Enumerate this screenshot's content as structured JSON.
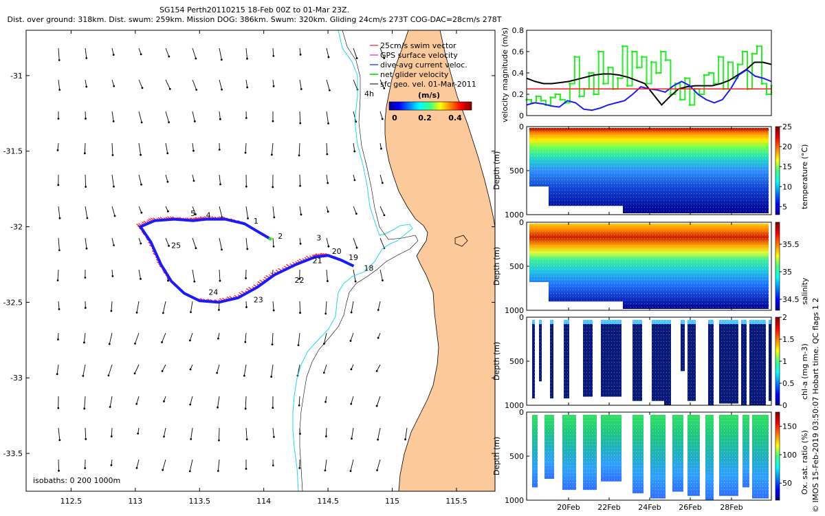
{
  "title": {
    "line1": "SG154 Perth20110215 18-Feb 00Z to 01-Mar 23Z.",
    "line2": "Dist. over ground: 318km. Dist. swum: 259km. Mission DOG: 386km. Swum: 320km. Gliding 24cm/s 273T COG-DAC=28cm/s 278T"
  },
  "colors": {
    "land": "#fbc99a",
    "isobath": "#22d8ee",
    "red": "#ff1a1a",
    "blue": "#1a1aff",
    "green": "#22ee22",
    "black": "#000000"
  },
  "chart_data": [
    {
      "type": "scatter",
      "name": "map",
      "xlabel": "",
      "ylabel": "",
      "xlim": [
        112.15,
        115.8
      ],
      "ylim": [
        -33.75,
        -30.7
      ],
      "xticks": [
        "112.5",
        "113",
        "113.5",
        "114",
        "114.5",
        "115",
        "115.5"
      ],
      "xtick_values": [
        112.5,
        113,
        113.5,
        114,
        114.5,
        115,
        115.5
      ],
      "yticks": [
        "-31",
        "-31.5",
        "-32",
        "-32.5",
        "-33",
        "-33.5"
      ],
      "ytick_values": [
        -31,
        -31.5,
        -32,
        -32.5,
        -33,
        -33.5
      ],
      "legend": [
        "25cm/s swim vector",
        "GPS surface velocity",
        "dive-avg current veloc.",
        "net glider velocity",
        "sfc geo. vel. 01-Mar-2011"
      ],
      "legend_note": "4h",
      "colorbar": {
        "label": "(m/s)",
        "ticks": [
          "0",
          "0.2",
          "0.4"
        ],
        "range": [
          0,
          0.5
        ]
      },
      "isobath_note": "isobaths: 0   200   1000m",
      "track": [
        [
          114.7,
          -32.26
        ],
        [
          114.6,
          -32.22
        ],
        [
          114.5,
          -32.19
        ],
        [
          114.4,
          -32.2
        ],
        [
          114.25,
          -32.25
        ],
        [
          114.08,
          -32.32
        ],
        [
          113.95,
          -32.4
        ],
        [
          113.8,
          -32.47
        ],
        [
          113.65,
          -32.5
        ],
        [
          113.5,
          -32.49
        ],
        [
          113.38,
          -32.44
        ],
        [
          113.28,
          -32.36
        ],
        [
          113.2,
          -32.25
        ],
        [
          113.12,
          -32.1
        ],
        [
          113.04,
          -32.0
        ],
        [
          113.15,
          -31.96
        ],
        [
          113.3,
          -31.95
        ],
        [
          113.45,
          -31.96
        ],
        [
          113.55,
          -31.95
        ],
        [
          113.7,
          -31.95
        ],
        [
          113.85,
          -31.98
        ],
        [
          113.95,
          -32.03
        ],
        [
          114.05,
          -32.08
        ]
      ],
      "day_labels": [
        {
          "t": "18",
          "lon": 114.78,
          "lat": -32.29
        },
        {
          "t": "19",
          "lon": 114.66,
          "lat": -32.22
        },
        {
          "t": "20",
          "lon": 114.53,
          "lat": -32.18
        },
        {
          "t": "21",
          "lon": 114.38,
          "lat": -32.24
        },
        {
          "t": "22",
          "lon": 114.24,
          "lat": -32.37
        },
        {
          "t": "23",
          "lon": 113.92,
          "lat": -32.5
        },
        {
          "t": "24",
          "lon": 113.57,
          "lat": -32.45
        },
        {
          "t": "25",
          "lon": 113.28,
          "lat": -32.14
        },
        {
          "t": "1",
          "lon": 113.92,
          "lat": -31.98
        },
        {
          "t": "2",
          "lon": 114.11,
          "lat": -32.08
        },
        {
          "t": "3",
          "lon": 114.41,
          "lat": -32.09
        },
        {
          "t": "4",
          "lon": 113.55,
          "lat": -31.94
        },
        {
          "t": "5",
          "lon": 113.43,
          "lat": -31.93
        }
      ]
    },
    {
      "type": "line",
      "name": "velocity",
      "ylabel": "velocity magnitude (m/s)",
      "ylim": [
        0,
        0.8
      ],
      "yticks": [
        "0",
        "0.2",
        "0.4",
        "0.6",
        "0.8"
      ],
      "ytick_values": [
        0,
        0.2,
        0.4,
        0.6,
        0.8
      ],
      "series": [
        {
          "name": "net glider velocity",
          "color": "green",
          "values": [
            0.15,
            0.12,
            0.18,
            0.14,
            0.1,
            0.17,
            0.2,
            0.15,
            0.12,
            0.3,
            0.55,
            0.18,
            0.25,
            0.4,
            0.2,
            0.6,
            0.3,
            0.45,
            0.25,
            0.35,
            0.65,
            0.28,
            0.6,
            0.45,
            0.55,
            0.3,
            0.5,
            0.4,
            0.6,
            0.52,
            0.2,
            0.3,
            0.15,
            0.35,
            0.1,
            0.25,
            0.2,
            0.38,
            0.4,
            0.3,
            0.55,
            0.25,
            0.5,
            0.35,
            0.48,
            0.6,
            0.25,
            0.58,
            0.65,
            0.3,
            0.2,
            0.28
          ]
        },
        {
          "name": "black",
          "color": "black",
          "values": [
            0.35,
            0.32,
            0.3,
            0.3,
            0.31,
            0.32,
            0.34,
            0.36,
            0.38,
            0.39,
            0.39,
            0.38,
            0.36,
            0.33,
            0.3,
            0.2,
            0.1,
            0.18,
            0.25,
            0.27,
            0.28,
            0.28,
            0.28,
            0.3,
            0.33,
            0.38,
            0.43,
            0.5,
            0.5,
            0.48
          ]
        },
        {
          "name": "blue",
          "color": "blue",
          "values": [
            0.1,
            0.12,
            0.11,
            0.09,
            0.08,
            0.14,
            0.12,
            0.06,
            0.05,
            0.07,
            0.1,
            0.12,
            0.14,
            0.2,
            0.27,
            0.25,
            0.24,
            0.22,
            0.28,
            0.32,
            0.28,
            0.2,
            0.15,
            0.12,
            0.15,
            0.25,
            0.38,
            0.43,
            0.37,
            0.35,
            0.32
          ]
        },
        {
          "name": "red",
          "color": "red",
          "values": [
            0.25,
            0.25
          ]
        }
      ]
    },
    {
      "type": "heatmap",
      "name": "temperature",
      "ylabel": "Depth (m)",
      "cblabel": "temperature (°C)",
      "cbticks": [
        "5",
        "10",
        "15",
        "20",
        "25"
      ],
      "cbrange": [
        3,
        25
      ],
      "ylim": [
        0,
        1000
      ],
      "yticks": [
        "0",
        "500",
        "1000"
      ],
      "ytick_values": [
        0,
        500,
        1000
      ]
    },
    {
      "type": "heatmap",
      "name": "salinity",
      "ylabel": "Depth (m)",
      "cblabel": "salinity",
      "cbticks": [
        "34.5",
        "35",
        "35.5"
      ],
      "cbrange": [
        34.3,
        35.9
      ],
      "ylim": [
        0,
        1000
      ],
      "yticks": [
        "0",
        "500",
        "1000"
      ],
      "ytick_values": [
        0,
        500,
        1000
      ]
    },
    {
      "type": "heatmap",
      "name": "chl-a",
      "ylabel": "Depth (m)",
      "cblabel": "chl-a (mg m-3)",
      "cbticks": [
        "0",
        "0.5",
        "1",
        "1.5",
        "2"
      ],
      "cbrange": [
        0,
        2
      ],
      "ylim": [
        0,
        1000
      ],
      "yticks": [
        "0",
        "500",
        "1000"
      ],
      "ytick_values": [
        0,
        500,
        1000
      ]
    },
    {
      "type": "heatmap",
      "name": "oxygen",
      "ylabel": "Depth (m)",
      "cblabel": "Ox. sat. ratio (%)",
      "cbticks": [
        "50",
        "100",
        "150"
      ],
      "cbrange": [
        20,
        175
      ],
      "ylim": [
        0,
        1000
      ],
      "yticks": [
        "0",
        "500",
        "1000"
      ],
      "ytick_values": [
        0,
        500,
        1000
      ],
      "xticks": [
        "20Feb",
        "22Feb",
        "24Feb",
        "26Feb",
        "28Feb"
      ]
    }
  ],
  "side_credit": "© IMOS 15-Feb-2019 03:50:07 Hobart time. QC flags 1  2"
}
